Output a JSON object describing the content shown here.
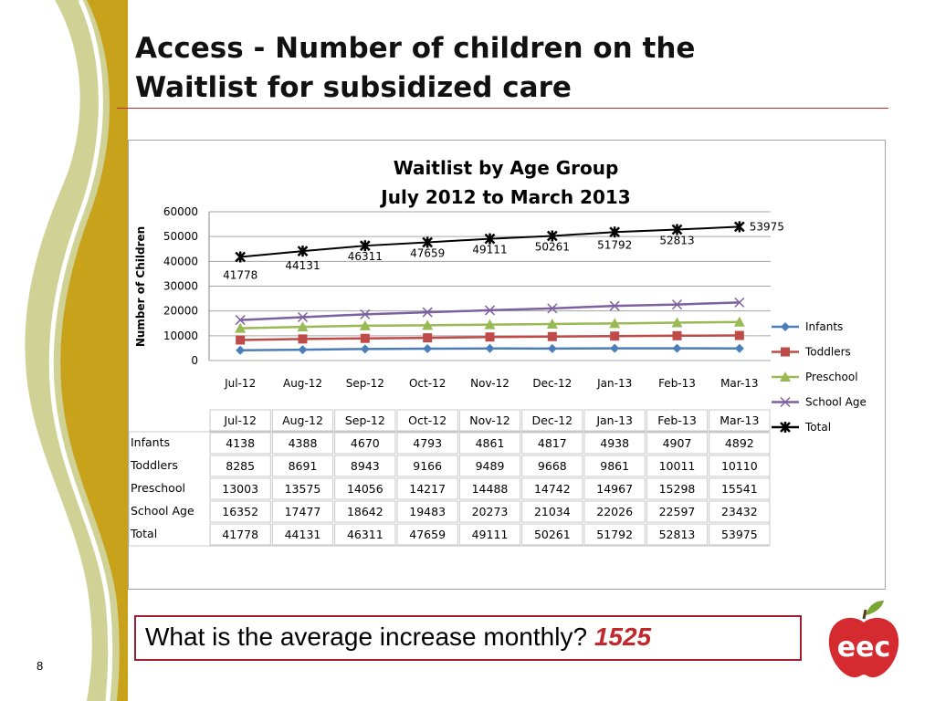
{
  "slide": {
    "title_line1": "Access - Number of children on the",
    "title_line2": "Waitlist for subsidized care",
    "question": "What is the average increase monthly?",
    "answer": "1525",
    "page_number": "8",
    "logo_text": "eec"
  },
  "colors": {
    "title_rule": "#c0282d",
    "question_border": "#9b2030",
    "answer": "#c0282d",
    "infants": "#4a7ebb",
    "toddlers": "#be4b48",
    "preschool": "#98b954",
    "school_age": "#7d60a0",
    "total": "#000000",
    "deco_gold": "#c9a21c",
    "deco_green": "#a8ad3c",
    "logo_red": "#d42a30",
    "logo_leaf": "#79a532"
  },
  "chart_data": {
    "type": "line",
    "title_line1": "Waitlist by Age Group",
    "title_line2": "July 2012 to March 2013",
    "xlabel": "",
    "ylabel": "Number of Children",
    "ylim": [
      0,
      60000
    ],
    "yticks": [
      0,
      10000,
      20000,
      30000,
      40000,
      50000,
      60000
    ],
    "grid": true,
    "legend_position": "right",
    "categories": [
      "Jul-12",
      "Aug-12",
      "Sep-12",
      "Oct-12",
      "Nov-12",
      "Dec-12",
      "Jan-13",
      "Feb-13",
      "Mar-13"
    ],
    "series": [
      {
        "name": "Infants",
        "marker": "diamond",
        "values": [
          4138,
          4388,
          4670,
          4793,
          4861,
          4817,
          4938,
          4907,
          4892
        ]
      },
      {
        "name": "Toddlers",
        "marker": "square",
        "values": [
          8285,
          8691,
          8943,
          9166,
          9489,
          9668,
          9861,
          10011,
          10110
        ]
      },
      {
        "name": "Preschool",
        "marker": "triangle",
        "values": [
          13003,
          13575,
          14056,
          14217,
          14488,
          14742,
          14967,
          15298,
          15541
        ]
      },
      {
        "name": "School Age",
        "marker": "x",
        "values": [
          16352,
          17477,
          18642,
          19483,
          20273,
          21034,
          22026,
          22597,
          23432
        ]
      },
      {
        "name": "Total",
        "marker": "star",
        "values": [
          41778,
          44131,
          46311,
          47659,
          49111,
          50261,
          51792,
          52813,
          53975
        ],
        "data_labels": true
      }
    ]
  }
}
